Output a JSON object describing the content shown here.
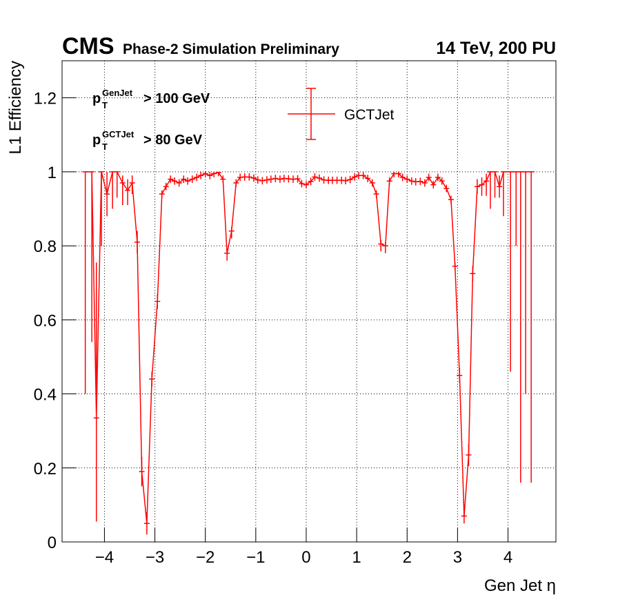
{
  "chart_data": {
    "type": "errorbar",
    "title": "CMS",
    "subtitle": "Phase-2 Simulation Preliminary",
    "energy_label": "14 TeV, 200 PU",
    "x_label": "Gen Jet η",
    "y_label": "L1 Efficiency",
    "annotations": [
      {
        "base": "p",
        "sub": "T",
        "sup": "GenJet",
        "text": "> 100 GeV"
      },
      {
        "base": "p",
        "sub": "T",
        "sup": "GCTJet",
        "text": "> 80 GeV"
      }
    ],
    "xlim": [
      -4.84,
      4.95
    ],
    "ylim": [
      0,
      1.3
    ],
    "xticks": [
      {
        "value": -4,
        "label": "−4"
      },
      {
        "value": -3,
        "label": "−3"
      },
      {
        "value": -2,
        "label": "−2"
      },
      {
        "value": -1,
        "label": "−1"
      },
      0,
      1,
      2,
      3,
      4
    ],
    "yticks": [
      0,
      0.2,
      0.4,
      0.6,
      0.8,
      1,
      1.2
    ],
    "grid": true,
    "x": [
      -4.38,
      -4.25,
      -4.16,
      -4.06,
      -3.95,
      -3.84,
      -3.75,
      -3.64,
      -3.54,
      -3.45,
      -3.35,
      -3.26,
      -3.16,
      -3.06,
      -2.95,
      -2.86,
      -2.78,
      -2.69,
      -2.61,
      -2.52,
      -2.43,
      -2.35,
      -2.26,
      -2.17,
      -2.09,
      -2.0,
      -1.91,
      -1.83,
      -1.74,
      -1.65,
      -1.57,
      -1.48,
      -1.39,
      -1.31,
      -1.22,
      -1.13,
      -1.04,
      -0.96,
      -0.87,
      -0.78,
      -0.7,
      -0.61,
      -0.52,
      -0.44,
      -0.35,
      -0.26,
      -0.17,
      -0.09,
      0,
      0.09,
      0.17,
      0.26,
      0.35,
      0.44,
      0.52,
      0.61,
      0.7,
      0.78,
      0.87,
      0.96,
      1.04,
      1.13,
      1.22,
      1.31,
      1.39,
      1.48,
      1.57,
      1.65,
      1.74,
      1.83,
      1.91,
      2.0,
      2.09,
      2.17,
      2.26,
      2.35,
      2.43,
      2.52,
      2.61,
      2.69,
      2.78,
      2.87,
      2.95,
      3.04,
      3.13,
      3.22,
      3.3,
      3.39,
      3.48,
      3.57,
      3.65,
      3.74,
      3.83,
      3.91,
      4.05,
      4.16,
      4.25,
      4.35,
      4.46
    ],
    "series": [
      {
        "name": "GCTJet",
        "color": "#ff0000",
        "values": [
          1,
          1,
          0.335,
          1,
          0.94,
          1,
          1,
          0.97,
          0.95,
          0.97,
          0.81,
          0.19,
          0.05,
          0.44,
          0.65,
          0.94,
          0.96,
          0.98,
          0.975,
          0.97,
          0.98,
          0.975,
          0.98,
          0.985,
          0.99,
          0.995,
          0.99,
          0.995,
          0.998,
          0.98,
          0.78,
          0.84,
          0.97,
          0.985,
          0.986,
          0.986,
          0.983,
          0.978,
          0.976,
          0.978,
          0.98,
          0.982,
          0.98,
          0.982,
          0.981,
          0.98,
          0.981,
          0.968,
          0.965,
          0.974,
          0.986,
          0.983,
          0.978,
          0.977,
          0.977,
          0.977,
          0.977,
          0.976,
          0.979,
          0.986,
          0.99,
          0.99,
          0.982,
          0.97,
          0.94,
          0.805,
          0.8,
          0.975,
          0.995,
          0.995,
          0.985,
          0.98,
          0.975,
          0.973,
          0.974,
          0.97,
          0.985,
          0.965,
          0.985,
          0.975,
          0.955,
          0.925,
          0.745,
          0.45,
          0.07,
          0.235,
          0.725,
          0.96,
          0.965,
          0.975,
          1,
          1,
          0.96,
          1,
          1,
          1,
          1,
          1,
          1
        ],
        "err_low": [
          0.6,
          0.46,
          0.28,
          0.2,
          0.06,
          0.1,
          0.07,
          0.06,
          0.04,
          0.03,
          0.03,
          0.04,
          0.03,
          0.02,
          0.02,
          0.01,
          0.01,
          0.01,
          0.01,
          0.01,
          0.01,
          0.01,
          0.01,
          0.01,
          0.01,
          0.01,
          0.01,
          0.01,
          0.01,
          0.01,
          0.02,
          0.02,
          0.01,
          0.01,
          0.01,
          0.01,
          0.01,
          0.01,
          0.01,
          0.01,
          0.01,
          0.01,
          0.01,
          0.01,
          0.01,
          0.01,
          0.01,
          0.01,
          0.01,
          0.01,
          0.01,
          0.01,
          0.01,
          0.01,
          0.01,
          0.01,
          0.01,
          0.01,
          0.01,
          0.01,
          0.01,
          0.01,
          0.01,
          0.01,
          0.01,
          0.02,
          0.02,
          0.01,
          0.01,
          0.01,
          0.01,
          0.01,
          0.01,
          0.01,
          0.01,
          0.01,
          0.01,
          0.01,
          0.01,
          0.01,
          0.01,
          0.01,
          0.01,
          0.02,
          0.02,
          0.03,
          0.02,
          0.02,
          0.03,
          0.04,
          0.1,
          0.07,
          0.03,
          0.12,
          0.54,
          0.2,
          0.84,
          0.6,
          0.84
        ],
        "err_high": [
          0,
          0,
          0.42,
          0,
          0.06,
          0,
          0,
          0.02,
          0.03,
          0.02,
          0.03,
          0.04,
          0.03,
          0.02,
          0.02,
          0.01,
          0.01,
          0.01,
          0.01,
          0.01,
          0.01,
          0.01,
          0.01,
          0.01,
          0.01,
          0.005,
          0.01,
          0.005,
          0.002,
          0.01,
          0.01,
          0.01,
          0.01,
          0.01,
          0.01,
          0.01,
          0.01,
          0.01,
          0.01,
          0.01,
          0.01,
          0.01,
          0.01,
          0.01,
          0.01,
          0.01,
          0.01,
          0.01,
          0.01,
          0.01,
          0.01,
          0.01,
          0.01,
          0.01,
          0.01,
          0.01,
          0.01,
          0.01,
          0.01,
          0.01,
          0.01,
          0.01,
          0.01,
          0.01,
          0.01,
          0.01,
          0.01,
          0.01,
          0.005,
          0.005,
          0.01,
          0.01,
          0.01,
          0.01,
          0.01,
          0.01,
          0.01,
          0.01,
          0.01,
          0.01,
          0.01,
          0.01,
          0.01,
          0.02,
          0.02,
          0.03,
          0.02,
          0.02,
          0.02,
          0.02,
          0,
          0,
          0.03,
          0,
          0,
          0,
          0,
          0,
          0
        ]
      }
    ]
  }
}
